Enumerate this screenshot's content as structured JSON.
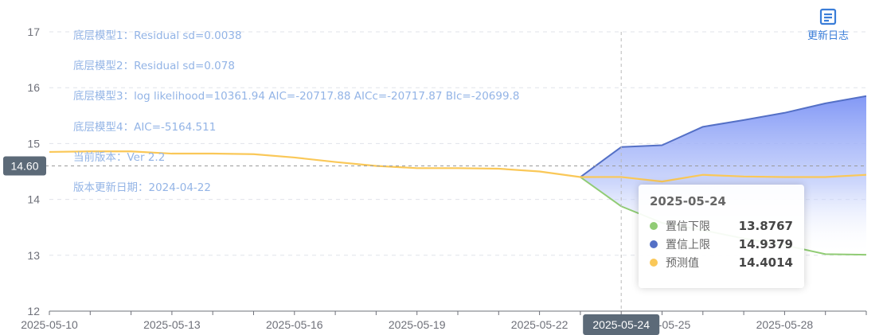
{
  "chart_data": {
    "type": "area",
    "x": [
      "2025-05-10",
      "2025-05-11",
      "2025-05-12",
      "2025-05-13",
      "2025-05-14",
      "2025-05-15",
      "2025-05-16",
      "2025-05-17",
      "2025-05-18",
      "2025-05-19",
      "2025-05-20",
      "2025-05-21",
      "2025-05-22",
      "2025-05-23",
      "2025-05-24",
      "2025-05-25",
      "2025-05-26",
      "2025-05-27",
      "2025-05-28",
      "2025-05-29",
      "2025-05-30"
    ],
    "x_tick_labels": [
      "2025-05-10",
      "2025-05-13",
      "2025-05-16",
      "2025-05-19",
      "2025-05-22",
      "2025-05-25",
      "2025-05-28"
    ],
    "ylim": [
      12,
      17
    ],
    "y_ticks": [
      12,
      13,
      14,
      15,
      16,
      17
    ],
    "grid": true,
    "series": [
      {
        "name": "置信下限",
        "color": "#91cc75",
        "values": [
          null,
          null,
          null,
          null,
          null,
          null,
          null,
          null,
          null,
          null,
          null,
          null,
          null,
          14.4,
          13.8767,
          13.58,
          13.45,
          13.3,
          13.18,
          13.02,
          13.01
        ]
      },
      {
        "name": "置信上限",
        "color": "#5470c6",
        "values": [
          null,
          null,
          null,
          null,
          null,
          null,
          null,
          null,
          null,
          null,
          null,
          null,
          null,
          14.4,
          14.9379,
          14.97,
          15.3,
          15.42,
          15.55,
          15.72,
          15.85
        ]
      },
      {
        "name": "预测值",
        "color": "#fac858",
        "values": [
          14.85,
          14.86,
          14.86,
          14.82,
          14.82,
          14.81,
          14.75,
          14.67,
          14.6,
          14.56,
          14.56,
          14.55,
          14.5,
          14.4,
          14.4014,
          14.32,
          14.44,
          14.41,
          14.4,
          14.4,
          14.44
        ]
      }
    ],
    "annotations": [
      "底层模型1：Residual sd=0.0038",
      "底层模型2：Residual sd=0.078",
      "底层模型3：log likelihood=10361.94 AIC=-20717.88 AICc=-20717.87 BIc=-20699.8",
      "底层模型4：AIC=-5164.511",
      "当前版本：Ver 2.2",
      "版本更新日期：2024-04-22"
    ],
    "crosshair": {
      "x": "2025-05-24",
      "x_label": "2025-05-24",
      "y_value": 14.6,
      "y_label": "14.60"
    }
  },
  "toolbar": {
    "update_log_label": "更新日志",
    "update_log_icon": "document-icon"
  },
  "tooltip": {
    "title": "2025-05-24",
    "rows": [
      {
        "name": "置信下限",
        "value": "13.8767",
        "color": "#91cc75"
      },
      {
        "name": "置信上限",
        "value": "14.9379",
        "color": "#5470c6"
      },
      {
        "name": "预测值",
        "value": "14.4014",
        "color": "#fac858"
      }
    ]
  }
}
